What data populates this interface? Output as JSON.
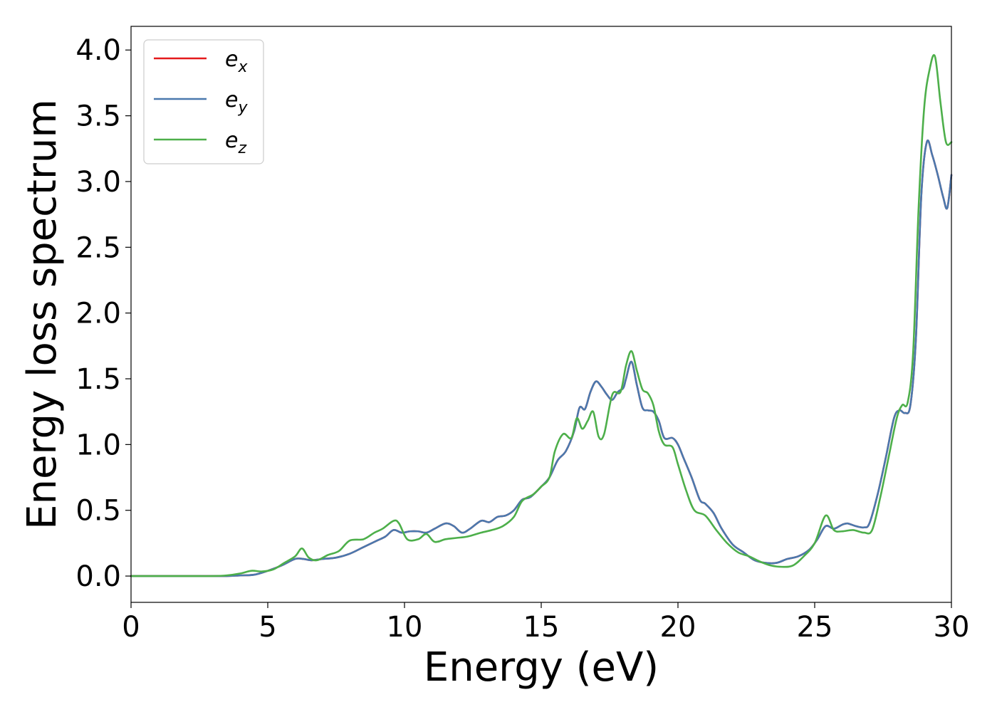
{
  "chart_data": {
    "type": "line",
    "xlabel": "Energy (eV)",
    "ylabel": "Energy loss spectrum",
    "xlim": [
      0,
      30
    ],
    "ylim": [
      -0.2,
      4.18
    ],
    "xticks": [
      0,
      5,
      10,
      15,
      20,
      25,
      30
    ],
    "yticks": [
      0.0,
      0.5,
      1.0,
      1.5,
      2.0,
      2.5,
      3.0,
      3.5,
      4.0
    ],
    "xtick_labels": [
      "0",
      "5",
      "10",
      "15",
      "20",
      "25",
      "30"
    ],
    "ytick_labels": [
      "0.0",
      "0.5",
      "1.0",
      "1.5",
      "2.0",
      "2.5",
      "3.0",
      "3.5",
      "4.0"
    ],
    "grid": false,
    "legend_position": "top-left",
    "series": [
      {
        "name": "e",
        "subscript": "x",
        "color": "#e41a1c",
        "x": [
          0,
          2,
          3,
          3.5,
          4,
          4.5,
          5,
          5.5,
          6,
          6.3,
          6.6,
          7,
          7.5,
          8,
          8.5,
          9,
          9.3,
          9.6,
          9.9,
          10.2,
          10.5,
          10.8,
          11.1,
          11.5,
          11.8,
          12.1,
          12.4,
          12.8,
          13.1,
          13.4,
          13.7,
          14,
          14.3,
          14.6,
          15,
          15.3,
          15.6,
          15.9,
          16.2,
          16.4,
          16.6,
          16.8,
          17,
          17.2,
          17.4,
          17.6,
          17.8,
          18,
          18.1,
          18.3,
          18.5,
          18.7,
          18.9,
          19.1,
          19.3,
          19.5,
          19.8,
          20,
          20.2,
          20.5,
          20.8,
          21,
          21.3,
          21.6,
          22,
          22.4,
          22.8,
          23.2,
          23.6,
          24,
          24.4,
          24.8,
          25.1,
          25.4,
          25.7,
          26,
          26.2,
          26.5,
          26.8,
          27,
          27.3,
          27.6,
          27.9,
          28.1,
          28.3,
          28.5,
          28.7,
          28.9,
          29.1,
          29.3,
          29.5,
          29.7,
          29.85,
          30
        ],
        "values": [
          0,
          0,
          0,
          0,
          0.005,
          0.01,
          0.04,
          0.08,
          0.13,
          0.13,
          0.12,
          0.13,
          0.14,
          0.17,
          0.22,
          0.27,
          0.3,
          0.35,
          0.33,
          0.34,
          0.34,
          0.33,
          0.36,
          0.4,
          0.38,
          0.33,
          0.36,
          0.42,
          0.41,
          0.45,
          0.46,
          0.5,
          0.58,
          0.6,
          0.68,
          0.75,
          0.88,
          0.95,
          1.1,
          1.28,
          1.27,
          1.4,
          1.48,
          1.44,
          1.38,
          1.34,
          1.4,
          1.43,
          1.5,
          1.63,
          1.45,
          1.28,
          1.26,
          1.25,
          1.18,
          1.05,
          1.05,
          1,
          0.9,
          0.75,
          0.58,
          0.55,
          0.48,
          0.36,
          0.24,
          0.18,
          0.12,
          0.1,
          0.1,
          0.13,
          0.15,
          0.2,
          0.28,
          0.38,
          0.36,
          0.39,
          0.4,
          0.38,
          0.37,
          0.4,
          0.62,
          0.9,
          1.2,
          1.26,
          1.24,
          1.3,
          1.8,
          2.9,
          3.3,
          3.2,
          3.05,
          2.88,
          2.8,
          3.05
        ]
      },
      {
        "name": "e",
        "subscript": "y",
        "color": "#4a79ae",
        "x": [
          0,
          2,
          3,
          3.5,
          4,
          4.5,
          5,
          5.5,
          6,
          6.3,
          6.6,
          7,
          7.5,
          8,
          8.5,
          9,
          9.3,
          9.6,
          9.9,
          10.2,
          10.5,
          10.8,
          11.1,
          11.5,
          11.8,
          12.1,
          12.4,
          12.8,
          13.1,
          13.4,
          13.7,
          14,
          14.3,
          14.6,
          15,
          15.3,
          15.6,
          15.9,
          16.2,
          16.4,
          16.6,
          16.8,
          17,
          17.2,
          17.4,
          17.6,
          17.8,
          18,
          18.1,
          18.3,
          18.5,
          18.7,
          18.9,
          19.1,
          19.3,
          19.5,
          19.8,
          20,
          20.2,
          20.5,
          20.8,
          21,
          21.3,
          21.6,
          22,
          22.4,
          22.8,
          23.2,
          23.6,
          24,
          24.4,
          24.8,
          25.1,
          25.4,
          25.7,
          26,
          26.2,
          26.5,
          26.8,
          27,
          27.3,
          27.6,
          27.9,
          28.1,
          28.3,
          28.5,
          28.7,
          28.9,
          29.1,
          29.3,
          29.5,
          29.7,
          29.85,
          30
        ],
        "values": [
          0,
          0,
          0,
          0,
          0.005,
          0.01,
          0.04,
          0.08,
          0.13,
          0.13,
          0.12,
          0.13,
          0.14,
          0.17,
          0.22,
          0.27,
          0.3,
          0.35,
          0.33,
          0.34,
          0.34,
          0.33,
          0.36,
          0.4,
          0.38,
          0.33,
          0.36,
          0.42,
          0.41,
          0.45,
          0.46,
          0.5,
          0.58,
          0.6,
          0.68,
          0.75,
          0.88,
          0.95,
          1.1,
          1.28,
          1.27,
          1.4,
          1.48,
          1.44,
          1.38,
          1.34,
          1.4,
          1.43,
          1.5,
          1.63,
          1.45,
          1.28,
          1.26,
          1.25,
          1.18,
          1.05,
          1.05,
          1,
          0.9,
          0.75,
          0.58,
          0.55,
          0.48,
          0.36,
          0.24,
          0.18,
          0.12,
          0.1,
          0.1,
          0.13,
          0.15,
          0.2,
          0.28,
          0.38,
          0.36,
          0.39,
          0.4,
          0.38,
          0.37,
          0.4,
          0.62,
          0.9,
          1.2,
          1.26,
          1.24,
          1.3,
          1.8,
          2.9,
          3.3,
          3.2,
          3.05,
          2.88,
          2.8,
          3.05
        ]
      },
      {
        "name": "e",
        "subscript": "z",
        "color": "#4daf4a",
        "x": [
          0,
          2,
          3,
          3.5,
          4,
          4.4,
          4.8,
          5.2,
          5.6,
          6,
          6.25,
          6.5,
          6.8,
          7.2,
          7.6,
          8,
          8.5,
          8.9,
          9.2,
          9.6,
          9.8,
          10.1,
          10.5,
          10.8,
          11.1,
          11.5,
          11.9,
          12.3,
          12.8,
          13.2,
          13.6,
          14,
          14.3,
          14.7,
          15,
          15.3,
          15.5,
          15.8,
          16.1,
          16.3,
          16.5,
          16.7,
          16.9,
          17.1,
          17.3,
          17.6,
          17.9,
          18.1,
          18.3,
          18.5,
          18.7,
          18.9,
          19.1,
          19.3,
          19.5,
          19.8,
          20,
          20.3,
          20.6,
          21,
          21.4,
          21.8,
          22.2,
          22.6,
          23,
          23.4,
          23.8,
          24.2,
          24.6,
          25,
          25.4,
          25.7,
          26,
          26.4,
          26.8,
          27.1,
          27.4,
          27.7,
          28,
          28.2,
          28.4,
          28.6,
          28.8,
          29,
          29.2,
          29.4,
          29.6,
          29.8,
          30
        ],
        "values": [
          0,
          0,
          0,
          0.005,
          0.02,
          0.04,
          0.035,
          0.05,
          0.1,
          0.15,
          0.21,
          0.14,
          0.12,
          0.16,
          0.19,
          0.27,
          0.28,
          0.33,
          0.36,
          0.42,
          0.4,
          0.28,
          0.28,
          0.32,
          0.26,
          0.28,
          0.29,
          0.3,
          0.33,
          0.35,
          0.38,
          0.45,
          0.57,
          0.62,
          0.68,
          0.75,
          0.95,
          1.08,
          1.05,
          1.2,
          1.12,
          1.18,
          1.25,
          1.06,
          1.08,
          1.38,
          1.4,
          1.6,
          1.71,
          1.56,
          1.42,
          1.39,
          1.3,
          1.1,
          1,
          0.98,
          0.85,
          0.65,
          0.5,
          0.46,
          0.35,
          0.25,
          0.18,
          0.15,
          0.11,
          0.08,
          0.07,
          0.08,
          0.15,
          0.25,
          0.46,
          0.35,
          0.34,
          0.35,
          0.33,
          0.35,
          0.6,
          0.9,
          1.2,
          1.3,
          1.32,
          1.7,
          2.8,
          3.55,
          3.85,
          3.95,
          3.6,
          3.3,
          3.3
        ]
      }
    ]
  }
}
